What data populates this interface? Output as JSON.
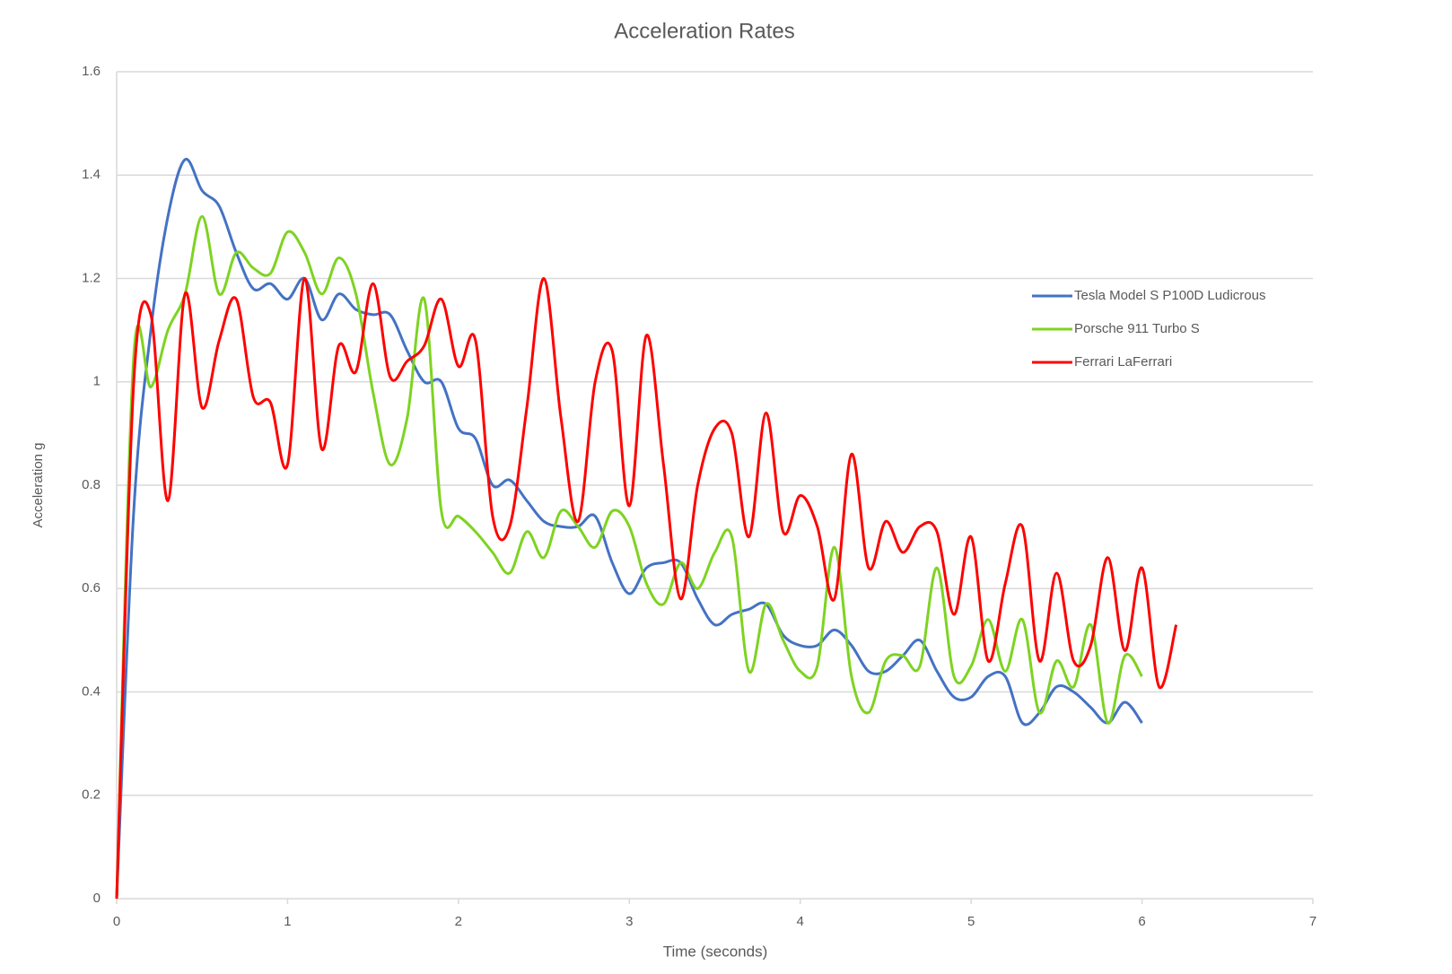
{
  "chart_data": {
    "type": "line",
    "title": "Acceleration Rates",
    "x_label": "Time (seconds)",
    "y_label": "Acceleration g",
    "xlim": [
      0,
      7
    ],
    "xticks": [
      0,
      1,
      2,
      3,
      4,
      5,
      6,
      7
    ],
    "ylim": [
      0,
      1.6
    ],
    "yticks": [
      0,
      0.2,
      0.4,
      0.6,
      0.8,
      1,
      1.2,
      1.4,
      1.6
    ],
    "grid": true,
    "legend": "right",
    "series": [
      {
        "name": "Tesla Model S P100D Ludicrous",
        "color": "#4472c4",
        "x": [
          0,
          0.1,
          0.2,
          0.3,
          0.4,
          0.5,
          0.6,
          0.7,
          0.8,
          0.9,
          1,
          1.1,
          1.2,
          1.3,
          1.4,
          1.5,
          1.6,
          1.7,
          1.8,
          1.9,
          2,
          2.1,
          2.2,
          2.3,
          2.4,
          2.5,
          2.6,
          2.7,
          2.8,
          2.9,
          3,
          3.1,
          3.2,
          3.3,
          3.4,
          3.5,
          3.6,
          3.7,
          3.8,
          3.9,
          4,
          4.1,
          4.2,
          4.3,
          4.4,
          4.5,
          4.6,
          4.7,
          4.8,
          4.9,
          5,
          5.1,
          5.2,
          5.3,
          5.4,
          5.5,
          5.6,
          5.7,
          5.8,
          5.9,
          6
        ],
        "values": [
          0,
          0.75,
          1.1,
          1.32,
          1.43,
          1.37,
          1.34,
          1.25,
          1.18,
          1.19,
          1.16,
          1.2,
          1.12,
          1.17,
          1.14,
          1.13,
          1.13,
          1.06,
          1.0,
          1.0,
          0.91,
          0.89,
          0.8,
          0.81,
          0.77,
          0.73,
          0.72,
          0.72,
          0.74,
          0.65,
          0.59,
          0.64,
          0.65,
          0.65,
          0.58,
          0.53,
          0.55,
          0.56,
          0.57,
          0.51,
          0.49,
          0.49,
          0.52,
          0.49,
          0.44,
          0.44,
          0.47,
          0.5,
          0.44,
          0.39,
          0.39,
          0.43,
          0.43,
          0.34,
          0.36,
          0.41,
          0.4,
          0.37,
          0.34,
          0.38,
          0.34
        ]
      },
      {
        "name": "Porsche 911 Turbo S",
        "color": "#7ed321",
        "x": [
          0,
          0.1,
          0.2,
          0.3,
          0.4,
          0.5,
          0.6,
          0.7,
          0.8,
          0.9,
          1,
          1.1,
          1.2,
          1.3,
          1.4,
          1.5,
          1.6,
          1.7,
          1.8,
          1.9,
          2,
          2.1,
          2.2,
          2.3,
          2.4,
          2.5,
          2.6,
          2.7,
          2.8,
          2.9,
          3,
          3.1,
          3.2,
          3.3,
          3.4,
          3.5,
          3.6,
          3.7,
          3.8,
          3.9,
          4,
          4.1,
          4.2,
          4.3,
          4.4,
          4.5,
          4.6,
          4.7,
          4.8,
          4.9,
          5,
          5.1,
          5.2,
          5.3,
          5.4,
          5.5,
          5.6,
          5.7,
          5.8,
          5.9,
          6
        ],
        "values": [
          0,
          1.05,
          0.99,
          1.1,
          1.17,
          1.32,
          1.17,
          1.25,
          1.22,
          1.21,
          1.29,
          1.25,
          1.17,
          1.24,
          1.17,
          0.98,
          0.84,
          0.93,
          1.16,
          0.75,
          0.74,
          0.71,
          0.67,
          0.63,
          0.71,
          0.66,
          0.75,
          0.72,
          0.68,
          0.75,
          0.72,
          0.61,
          0.57,
          0.65,
          0.6,
          0.67,
          0.7,
          0.44,
          0.57,
          0.5,
          0.44,
          0.45,
          0.68,
          0.43,
          0.36,
          0.46,
          0.47,
          0.45,
          0.64,
          0.43,
          0.45,
          0.54,
          0.44,
          0.54,
          0.36,
          0.46,
          0.41,
          0.53,
          0.34,
          0.47,
          0.43
        ]
      },
      {
        "name": "Ferrari LaFerrari",
        "color": "#ff0000",
        "x": [
          0,
          0.1,
          0.2,
          0.3,
          0.4,
          0.5,
          0.6,
          0.7,
          0.8,
          0.9,
          1,
          1.1,
          1.2,
          1.3,
          1.4,
          1.5,
          1.6,
          1.7,
          1.8,
          1.9,
          2,
          2.1,
          2.2,
          2.3,
          2.4,
          2.5,
          2.6,
          2.7,
          2.8,
          2.9,
          3,
          3.1,
          3.2,
          3.3,
          3.4,
          3.5,
          3.6,
          3.7,
          3.8,
          3.9,
          4,
          4.1,
          4.2,
          4.3,
          4.4,
          4.5,
          4.6,
          4.7,
          4.8,
          4.9,
          5,
          5.1,
          5.2,
          5.3,
          5.4,
          5.5,
          5.6,
          5.7,
          5.8,
          5.9,
          6,
          6.1,
          6.2
        ],
        "values": [
          0,
          1.0,
          1.13,
          0.77,
          1.17,
          0.95,
          1.08,
          1.16,
          0.97,
          0.96,
          0.84,
          1.2,
          0.87,
          1.07,
          1.02,
          1.19,
          1.01,
          1.04,
          1.07,
          1.16,
          1.03,
          1.08,
          0.74,
          0.72,
          0.95,
          1.2,
          0.93,
          0.73,
          1.0,
          1.06,
          0.76,
          1.09,
          0.84,
          0.58,
          0.8,
          0.91,
          0.9,
          0.7,
          0.94,
          0.71,
          0.78,
          0.72,
          0.58,
          0.86,
          0.64,
          0.73,
          0.67,
          0.72,
          0.71,
          0.55,
          0.7,
          0.46,
          0.61,
          0.72,
          0.46,
          0.63,
          0.46,
          0.49,
          0.66,
          0.48,
          0.64,
          0.41,
          0.53
        ]
      }
    ]
  }
}
